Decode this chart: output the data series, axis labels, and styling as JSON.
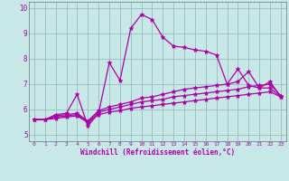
{
  "xlabel": "Windchill (Refroidissement éolien,°C)",
  "xlim": [
    -0.5,
    23.5
  ],
  "ylim": [
    4.75,
    10.25
  ],
  "yticks": [
    5,
    6,
    7,
    8,
    9,
    10
  ],
  "xticks": [
    0,
    1,
    2,
    3,
    4,
    5,
    6,
    7,
    8,
    9,
    10,
    11,
    12,
    13,
    14,
    15,
    16,
    17,
    18,
    19,
    20,
    21,
    22,
    23
  ],
  "line_color": "#aa00aa",
  "bg_color": "#c8e8e8",
  "grid_color": "#99bbbb",
  "lines": [
    [
      5.6,
      5.6,
      5.8,
      5.85,
      6.6,
      5.35,
      5.85,
      7.85,
      7.15,
      9.2,
      9.75,
      9.55,
      8.85,
      8.5,
      8.45,
      8.35,
      8.3,
      8.15,
      7.0,
      7.6,
      6.95,
      6.85,
      7.1,
      6.5
    ],
    [
      5.6,
      5.6,
      5.75,
      5.8,
      5.85,
      5.55,
      5.95,
      6.1,
      6.2,
      6.3,
      6.45,
      6.5,
      6.6,
      6.7,
      6.8,
      6.85,
      6.9,
      6.95,
      7.0,
      7.1,
      7.5,
      6.85,
      6.85,
      6.5
    ],
    [
      5.6,
      5.6,
      5.7,
      5.75,
      5.8,
      5.5,
      5.9,
      6.0,
      6.1,
      6.2,
      6.3,
      6.35,
      6.4,
      6.5,
      6.55,
      6.6,
      6.65,
      6.7,
      6.75,
      6.8,
      6.9,
      6.95,
      7.0,
      6.55
    ],
    [
      5.6,
      5.6,
      5.65,
      5.7,
      5.75,
      5.48,
      5.8,
      5.9,
      5.95,
      6.05,
      6.1,
      6.15,
      6.2,
      6.25,
      6.3,
      6.35,
      6.4,
      6.45,
      6.5,
      6.55,
      6.6,
      6.65,
      6.7,
      6.5
    ]
  ]
}
